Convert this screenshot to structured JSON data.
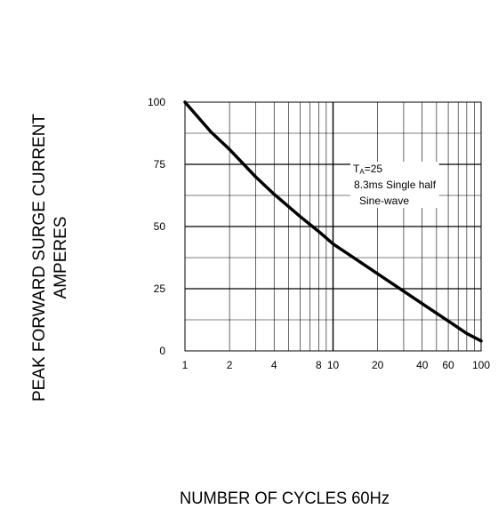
{
  "chart_data": {
    "type": "line",
    "title": "",
    "xlabel": "NUMBER  OF  CYCLES 60Hz",
    "ylabel": [
      "PEAK FORWARD SURGE CURRENT",
      "AMPERES"
    ],
    "xscale": "log",
    "xlim": [
      1,
      100
    ],
    "ylim": [
      0,
      100
    ],
    "xticks": [
      1,
      2,
      4,
      8,
      10,
      20,
      40,
      60,
      100
    ],
    "xtick_labels": [
      "1",
      "2",
      "4",
      "8",
      "10",
      "20",
      "40",
      "60",
      "100"
    ],
    "yticks": [
      0,
      25,
      50,
      75,
      100
    ],
    "ytick_labels": [
      "0",
      "25",
      "50",
      "75",
      "100"
    ],
    "grid": true,
    "series": [
      {
        "x": [
          1,
          1.5,
          2,
          3,
          4,
          6,
          8,
          10,
          15,
          20,
          30,
          40,
          60,
          80,
          100
        ],
        "y": [
          100,
          88,
          81,
          70,
          63,
          54,
          48,
          43,
          36,
          31,
          24,
          19,
          12,
          7,
          4
        ]
      }
    ],
    "annotation": {
      "prefix": "T",
      "subscript": "A",
      "suffix": "=25",
      "line2": "8.3ms Single half",
      "line3": "Sine-wave"
    }
  }
}
